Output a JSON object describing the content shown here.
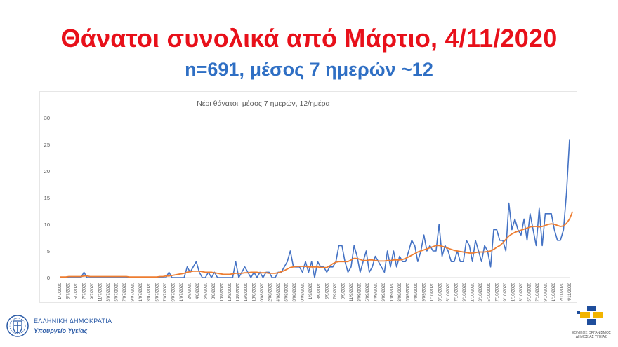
{
  "slide": {
    "title": "Θάνατοι συνολικά από Μάρτιο, 4/11/2020",
    "subtitle": "n=691, μέσος 7 ημερών ~12"
  },
  "branding": {
    "left_line1": "ΕΛΛΗΝΙΚΗ ΔΗΜΟΚΡΑΤΙΑ",
    "left_line2": "Υπουργείο Υγείας",
    "right_line1": "ΕΘΝΙΚΟΣ ΟΡΓΑΝΙΣΜΟΣ",
    "right_line2": "ΔΗΜΟΣΙΑΣ ΥΓΕΙΑΣ",
    "left_seal_icon": "greek-coat-of-arms-icon",
    "right_logo_icon": "eody-logo-icon"
  },
  "colors": {
    "title": "#e8101a",
    "subtitle": "#2f6fc4",
    "daily_series": "#4472c4",
    "avg_series": "#ed7d31"
  },
  "chart_data": {
    "type": "line",
    "title": "Νέοι θάνατοι, μέσος 7 ημερών, 12/ημέρα",
    "xlabel": "",
    "ylabel": "",
    "ylim": [
      0,
      30
    ],
    "y_ticks": [
      "0",
      "5",
      "10",
      "15",
      "20",
      "25",
      "30"
    ],
    "grid": false,
    "x_tick_labels": [
      "1/7/2020",
      "3/7/2020",
      "5/7/2020",
      "7/7/2020",
      "9/7/2020",
      "11/7/2020",
      "13/07/2020",
      "15/07/2020",
      "17/07/2020",
      "19/07/2020",
      "21/07/2020",
      "23/07/2020",
      "25/07/2020",
      "27/07/2020",
      "29/07/2020",
      "31/07/2020",
      "2/8/2020",
      "4/8/2020",
      "6/8/2020",
      "8/8/2020",
      "10/8/2020",
      "12/8/2020",
      "14/8/2020",
      "16/8/2020",
      "18/8/2020",
      "20/08/2020",
      "22/08/2020",
      "24/08/2020",
      "26/08/2020",
      "28/08/2020",
      "30/08/2020",
      "1/9/2020",
      "3/9/2020",
      "5/9/2020",
      "7/9/2020",
      "9/9/2020",
      "11/9/2020",
      "13/09/2020",
      "15/09/2020",
      "17/09/2020",
      "19/09/2020",
      "21/09/2020",
      "23/09/2020",
      "25/09/2020",
      "27/09/2020",
      "29/09/2020",
      "1/10/2020",
      "3/10/2020",
      "5/10/2020",
      "7/10/2020",
      "9/10/2020",
      "11/10/2020",
      "13/10/2020",
      "15/10/2020",
      "17/10/2020",
      "19/10/2020",
      "21/10/2020",
      "23/10/2020",
      "25/10/2020",
      "27/10/2020",
      "29/10/2020",
      "31/10/2020",
      "2/11/2020",
      "4/11/2020"
    ],
    "series": [
      {
        "name": "",
        "values": [
          0,
          0,
          0,
          0,
          0,
          0,
          0,
          0,
          1,
          0,
          0,
          0,
          0,
          0,
          0,
          0,
          0,
          0,
          0,
          0,
          0,
          0,
          0,
          0,
          0,
          0,
          0,
          0,
          0,
          0,
          0,
          0,
          0,
          0,
          0,
          0,
          1,
          0,
          0,
          0,
          0,
          0,
          2,
          1,
          2,
          3,
          1,
          0,
          0,
          1,
          0,
          1,
          0,
          0,
          0,
          0,
          0,
          0,
          3,
          0,
          1,
          2,
          1,
          0,
          1,
          0,
          1,
          0,
          1,
          1,
          0,
          0,
          1,
          1,
          2,
          3,
          5,
          2,
          2,
          2,
          1,
          3,
          1,
          3,
          0,
          3,
          2,
          2,
          1,
          2,
          2,
          3,
          6,
          6,
          3,
          1,
          2,
          6,
          4,
          1,
          3,
          5,
          1,
          2,
          4,
          3,
          2,
          1,
          5,
          2,
          5,
          2,
          4,
          3,
          3,
          5,
          7,
          6,
          3,
          5,
          8,
          5,
          6,
          5,
          5,
          10,
          4,
          6,
          5,
          3,
          3,
          5,
          3,
          3,
          7,
          6,
          3,
          7,
          5,
          3,
          6,
          5,
          2,
          9,
          9,
          7,
          7,
          5,
          14,
          9,
          11,
          9,
          8,
          11,
          7,
          12,
          9,
          6,
          13,
          6,
          12,
          12,
          12,
          9,
          7,
          7,
          9,
          16,
          26
        ]
      },
      {
        "name": "",
        "values": [
          0.1,
          0.1,
          0.1,
          0.2,
          0.2,
          0.2,
          0.2,
          0.2,
          0.3,
          0.3,
          0.2,
          0.2,
          0.2,
          0.2,
          0.2,
          0.2,
          0.2,
          0.2,
          0.2,
          0.2,
          0.2,
          0.2,
          0.2,
          0.1,
          0.1,
          0.1,
          0.1,
          0.1,
          0.1,
          0.1,
          0.1,
          0.1,
          0.1,
          0.2,
          0.2,
          0.3,
          0.3,
          0.4,
          0.5,
          0.6,
          0.7,
          0.8,
          1.0,
          1.1,
          1.2,
          1.2,
          1.2,
          1.1,
          1.0,
          1.0,
          1.0,
          0.9,
          0.8,
          0.7,
          0.6,
          0.6,
          0.6,
          0.7,
          0.8,
          0.8,
          0.8,
          0.9,
          0.9,
          1.0,
          1.0,
          1.0,
          0.9,
          0.9,
          0.9,
          0.8,
          0.8,
          0.8,
          0.9,
          1.1,
          1.3,
          1.6,
          1.9,
          2.0,
          2.1,
          2.1,
          2.1,
          2.1,
          2.0,
          2.0,
          2.0,
          2.0,
          1.9,
          1.9,
          1.9,
          2.2,
          2.6,
          2.9,
          3.0,
          3.0,
          3.0,
          3.0,
          3.3,
          3.6,
          3.6,
          3.4,
          3.2,
          3.2,
          3.3,
          3.3,
          3.2,
          3.1,
          3.1,
          3.1,
          3.2,
          3.2,
          3.3,
          3.3,
          3.3,
          3.4,
          3.6,
          3.9,
          4.2,
          4.5,
          4.8,
          5.0,
          5.2,
          5.4,
          5.6,
          5.8,
          6.0,
          6.0,
          5.9,
          5.7,
          5.5,
          5.3,
          5.1,
          5.0,
          4.9,
          4.8,
          4.7,
          4.6,
          4.6,
          4.7,
          4.8,
          4.8,
          4.8,
          4.9,
          5.0,
          5.3,
          5.7,
          6.0,
          6.5,
          7.2,
          7.8,
          8.2,
          8.5,
          8.7,
          8.9,
          9.1,
          9.3,
          9.5,
          9.6,
          9.6,
          9.5,
          9.6,
          9.8,
          10.0,
          10.1,
          10.0,
          9.8,
          9.6,
          9.7,
          10.2,
          11.0,
          12.4
        ]
      }
    ]
  }
}
